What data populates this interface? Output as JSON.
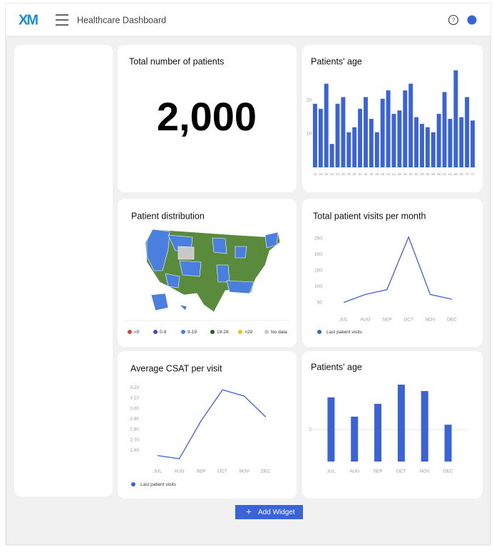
{
  "header": {
    "logo": "XM",
    "title": "Healthcare Dashboard"
  },
  "widgets": [
    {
      "title": "Total number of patients",
      "value": "2,000"
    },
    {
      "title": "Patients' age",
      "chart_data": {
        "type": "bar",
        "color": "#3b63d8",
        "categories": [
          "16",
          "18",
          "20",
          "22",
          "24",
          "26",
          "28",
          "30",
          "32",
          "34",
          "36",
          "38",
          "40",
          "42",
          "44",
          "46",
          "48",
          "50",
          "52",
          "54",
          "56",
          "58",
          "60",
          "62",
          "64",
          "66",
          "68",
          "70",
          "72"
        ],
        "values": [
          19,
          17.5,
          25,
          7,
          19,
          21,
          10.5,
          12,
          17.5,
          21,
          14.5,
          10.5,
          20.5,
          23,
          16,
          17,
          23,
          25,
          15,
          13,
          12,
          10.5,
          16,
          22.5,
          14.5,
          29,
          15,
          21,
          14
        ],
        "ylim": [
          0,
          30
        ],
        "yticks": [
          10,
          20
        ],
        "grid": false
      }
    },
    {
      "title": "Patient distribution",
      "legend": [
        {
          "name": "<0",
          "color": "#d9443b"
        },
        {
          "name": "0-9",
          "color": "#5a3fc0"
        },
        {
          "name": "9-19",
          "color": "#4a7fe0"
        },
        {
          "name": "19-28",
          "color": "#2d5a1e"
        },
        {
          "name": ">29",
          "color": "#e6c229"
        },
        {
          "name": "No data",
          "color": "#c8c8c8"
        }
      ]
    },
    {
      "title": "Total patient visits per month",
      "chart_data": {
        "type": "line",
        "categories": [
          "JUL",
          "AUG",
          "SEP",
          "OCT",
          "NOV",
          "DEC"
        ],
        "series": [
          {
            "name": "Last patient visits",
            "color": "#3b63d8",
            "values": [
              50,
              75,
              90,
              255,
              75,
              60
            ]
          }
        ],
        "ylim": [
          0,
          260
        ],
        "yticks": [
          50,
          100,
          150,
          200,
          250
        ],
        "grid": false
      }
    },
    {
      "title": "Average CSAT per visit",
      "chart_data": {
        "type": "line",
        "categories": [
          "JUL",
          "AUG",
          "SEP",
          "OCT",
          "NOV",
          "DEC"
        ],
        "series": [
          {
            "name": "Last patient visits",
            "color": "#3b63d8",
            "values": [
              2.55,
              2.52,
              2.88,
              3.18,
              3.12,
              2.92
            ]
          }
        ],
        "ylim": [
          2.5,
          3.25
        ],
        "yticks": [
          {
            "value": 2.6,
            "label": "2.60"
          },
          {
            "value": 2.7,
            "label": "2.70"
          },
          {
            "value": 2.8,
            "label": "2.80"
          },
          {
            "value": 2.9,
            "label": "2.90"
          },
          {
            "value": 3.0,
            "label": "3.00"
          },
          {
            "value": 3.1,
            "label": "3.10"
          },
          {
            "value": 3.2,
            "label": "3.20"
          }
        ],
        "grid": false
      }
    },
    {
      "title": "Patients' age",
      "chart_data": {
        "type": "bar",
        "color": "#3b63d8",
        "categories": [
          "JUL",
          "AUG",
          "SEP",
          "OCT",
          "NOV",
          "DEC"
        ],
        "values": [
          4.0,
          2.8,
          3.6,
          4.8,
          4.4,
          2.3
        ],
        "ylim": [
          0,
          5
        ],
        "yticks": [
          2
        ],
        "grid": true
      }
    }
  ],
  "button": "Add Widget"
}
